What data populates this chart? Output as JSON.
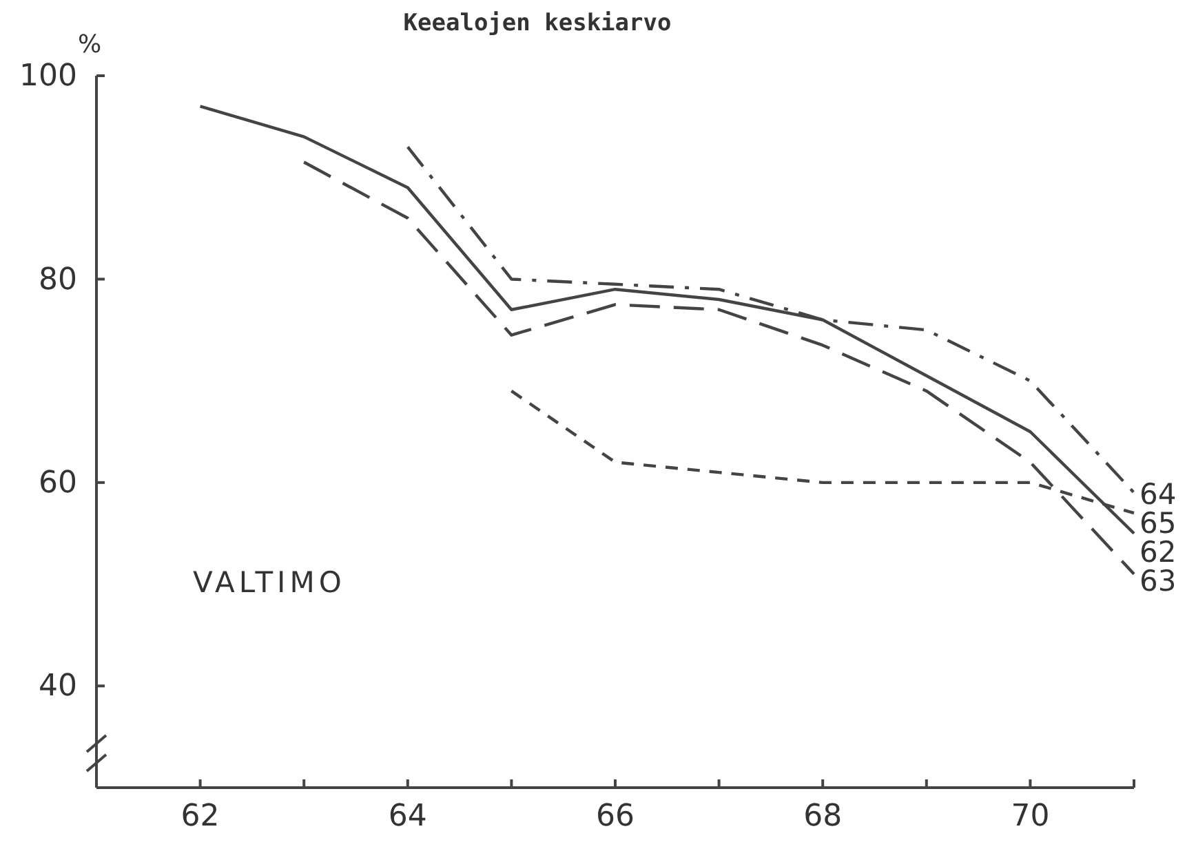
{
  "chart_data": {
    "type": "line",
    "title": "Keealojen keskiarvo",
    "ylabel": "%",
    "annotations": [
      "VALTIMO"
    ],
    "x": [
      62,
      63,
      64,
      65,
      66,
      67,
      68,
      69,
      70,
      71
    ],
    "xlim": [
      61,
      71
    ],
    "xticks": [
      62,
      {
        "value": 63,
        "label": null
      },
      64,
      {
        "value": 65,
        "label": null
      },
      66,
      {
        "value": 67,
        "label": null
      },
      68,
      {
        "value": 69,
        "label": null
      },
      70,
      {
        "value": 71,
        "label": null
      }
    ],
    "ylim": [
      30,
      100
    ],
    "yticks": [
      40,
      60,
      80,
      100
    ],
    "grid": false,
    "series": [
      {
        "name": "62",
        "color": "#444444",
        "line_style": "solid",
        "values": [
          97,
          94,
          89,
          77,
          79,
          78,
          76,
          70.5,
          65,
          55
        ]
      },
      {
        "name": "63",
        "color": "#444444",
        "line_style": "dashed",
        "values": [
          null,
          91.5,
          86,
          74.5,
          77.5,
          77,
          73.5,
          69,
          62,
          51
        ]
      },
      {
        "name": "64",
        "color": "#444444",
        "line_style": "dashdot",
        "values": [
          null,
          null,
          93,
          80,
          79.5,
          79,
          76,
          75,
          70,
          59
        ]
      },
      {
        "name": "65",
        "color": "#444444",
        "line_style": "shortdash",
        "values": [
          null,
          null,
          null,
          69,
          62,
          61,
          60,
          60,
          60,
          57
        ]
      }
    ]
  }
}
